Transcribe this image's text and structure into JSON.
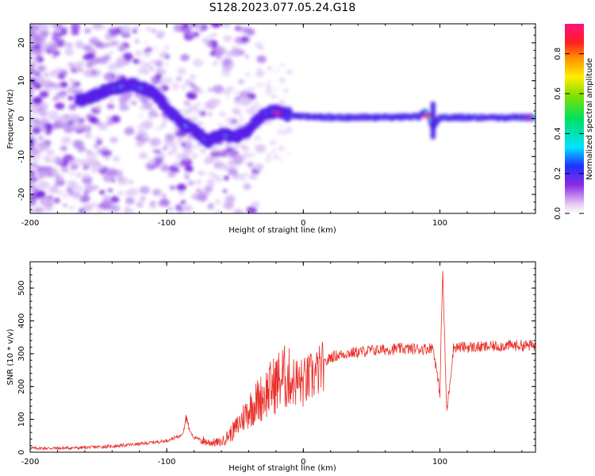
{
  "title": "S128.2023.077.05.24.G18",
  "colors": {
    "snr_line": "#e8302a",
    "axis": "#000000"
  },
  "chart_data": [
    {
      "type": "heatmap",
      "xlabel": "Height of straight line (km)",
      "ylabel": "Frequency (Hz)",
      "xlim": [
        -200,
        170
      ],
      "ylim": [
        -25,
        25
      ],
      "x_ticks": [
        "-200",
        "-100",
        "0",
        "100"
      ],
      "y_ticks": [
        "-20",
        "-10",
        "0",
        "10",
        "20"
      ],
      "ridge": {
        "x": [
          -160,
          -140,
          -125,
          -110,
          -100,
          -90,
          -80,
          -70,
          -60,
          -50,
          -40,
          -30,
          -20,
          -10,
          0,
          20,
          50,
          85,
          90,
          95,
          100,
          130,
          170
        ],
        "y": [
          5,
          8,
          9,
          7,
          3,
          -1,
          -3,
          -6,
          -4,
          -5,
          -3,
          1,
          2,
          1,
          0.5,
          0.3,
          0.3,
          0.5,
          2,
          -2,
          0.3,
          0.3,
          0.3
        ]
      },
      "colorbar": {
        "label": "Normalized spectral amplitude",
        "range": [
          0,
          0.95
        ],
        "ticks": [
          "0.0",
          "0.2",
          "0.4",
          "0.6",
          "0.8"
        ]
      }
    },
    {
      "type": "line",
      "xlabel": "Height of straight line (km)",
      "ylabel": "SNR (10 * v/v)",
      "xlim": [
        -200,
        170
      ],
      "ylim": [
        0,
        580
      ],
      "x_ticks": [
        "-200",
        "-100",
        "0",
        "100"
      ],
      "y_ticks": [
        "0",
        "100",
        "200",
        "300",
        "400",
        "500"
      ],
      "series": [
        {
          "x": [
            -200,
            -180,
            -160,
            -140,
            -120,
            -100,
            -90,
            -85,
            -80,
            -70,
            -60,
            -50,
            -40,
            -30,
            -20,
            -15,
            -10,
            0,
            10,
            20,
            30,
            50,
            70,
            90,
            95,
            100,
            102,
            105,
            110,
            130,
            150,
            170
          ],
          "y": [
            12,
            12,
            14,
            18,
            25,
            35,
            50,
            80,
            45,
            30,
            30,
            70,
            130,
            170,
            210,
            230,
            220,
            210,
            240,
            290,
            300,
            310,
            315,
            315,
            320,
            180,
            560,
            120,
            320,
            320,
            325,
            325
          ]
        }
      ]
    }
  ]
}
